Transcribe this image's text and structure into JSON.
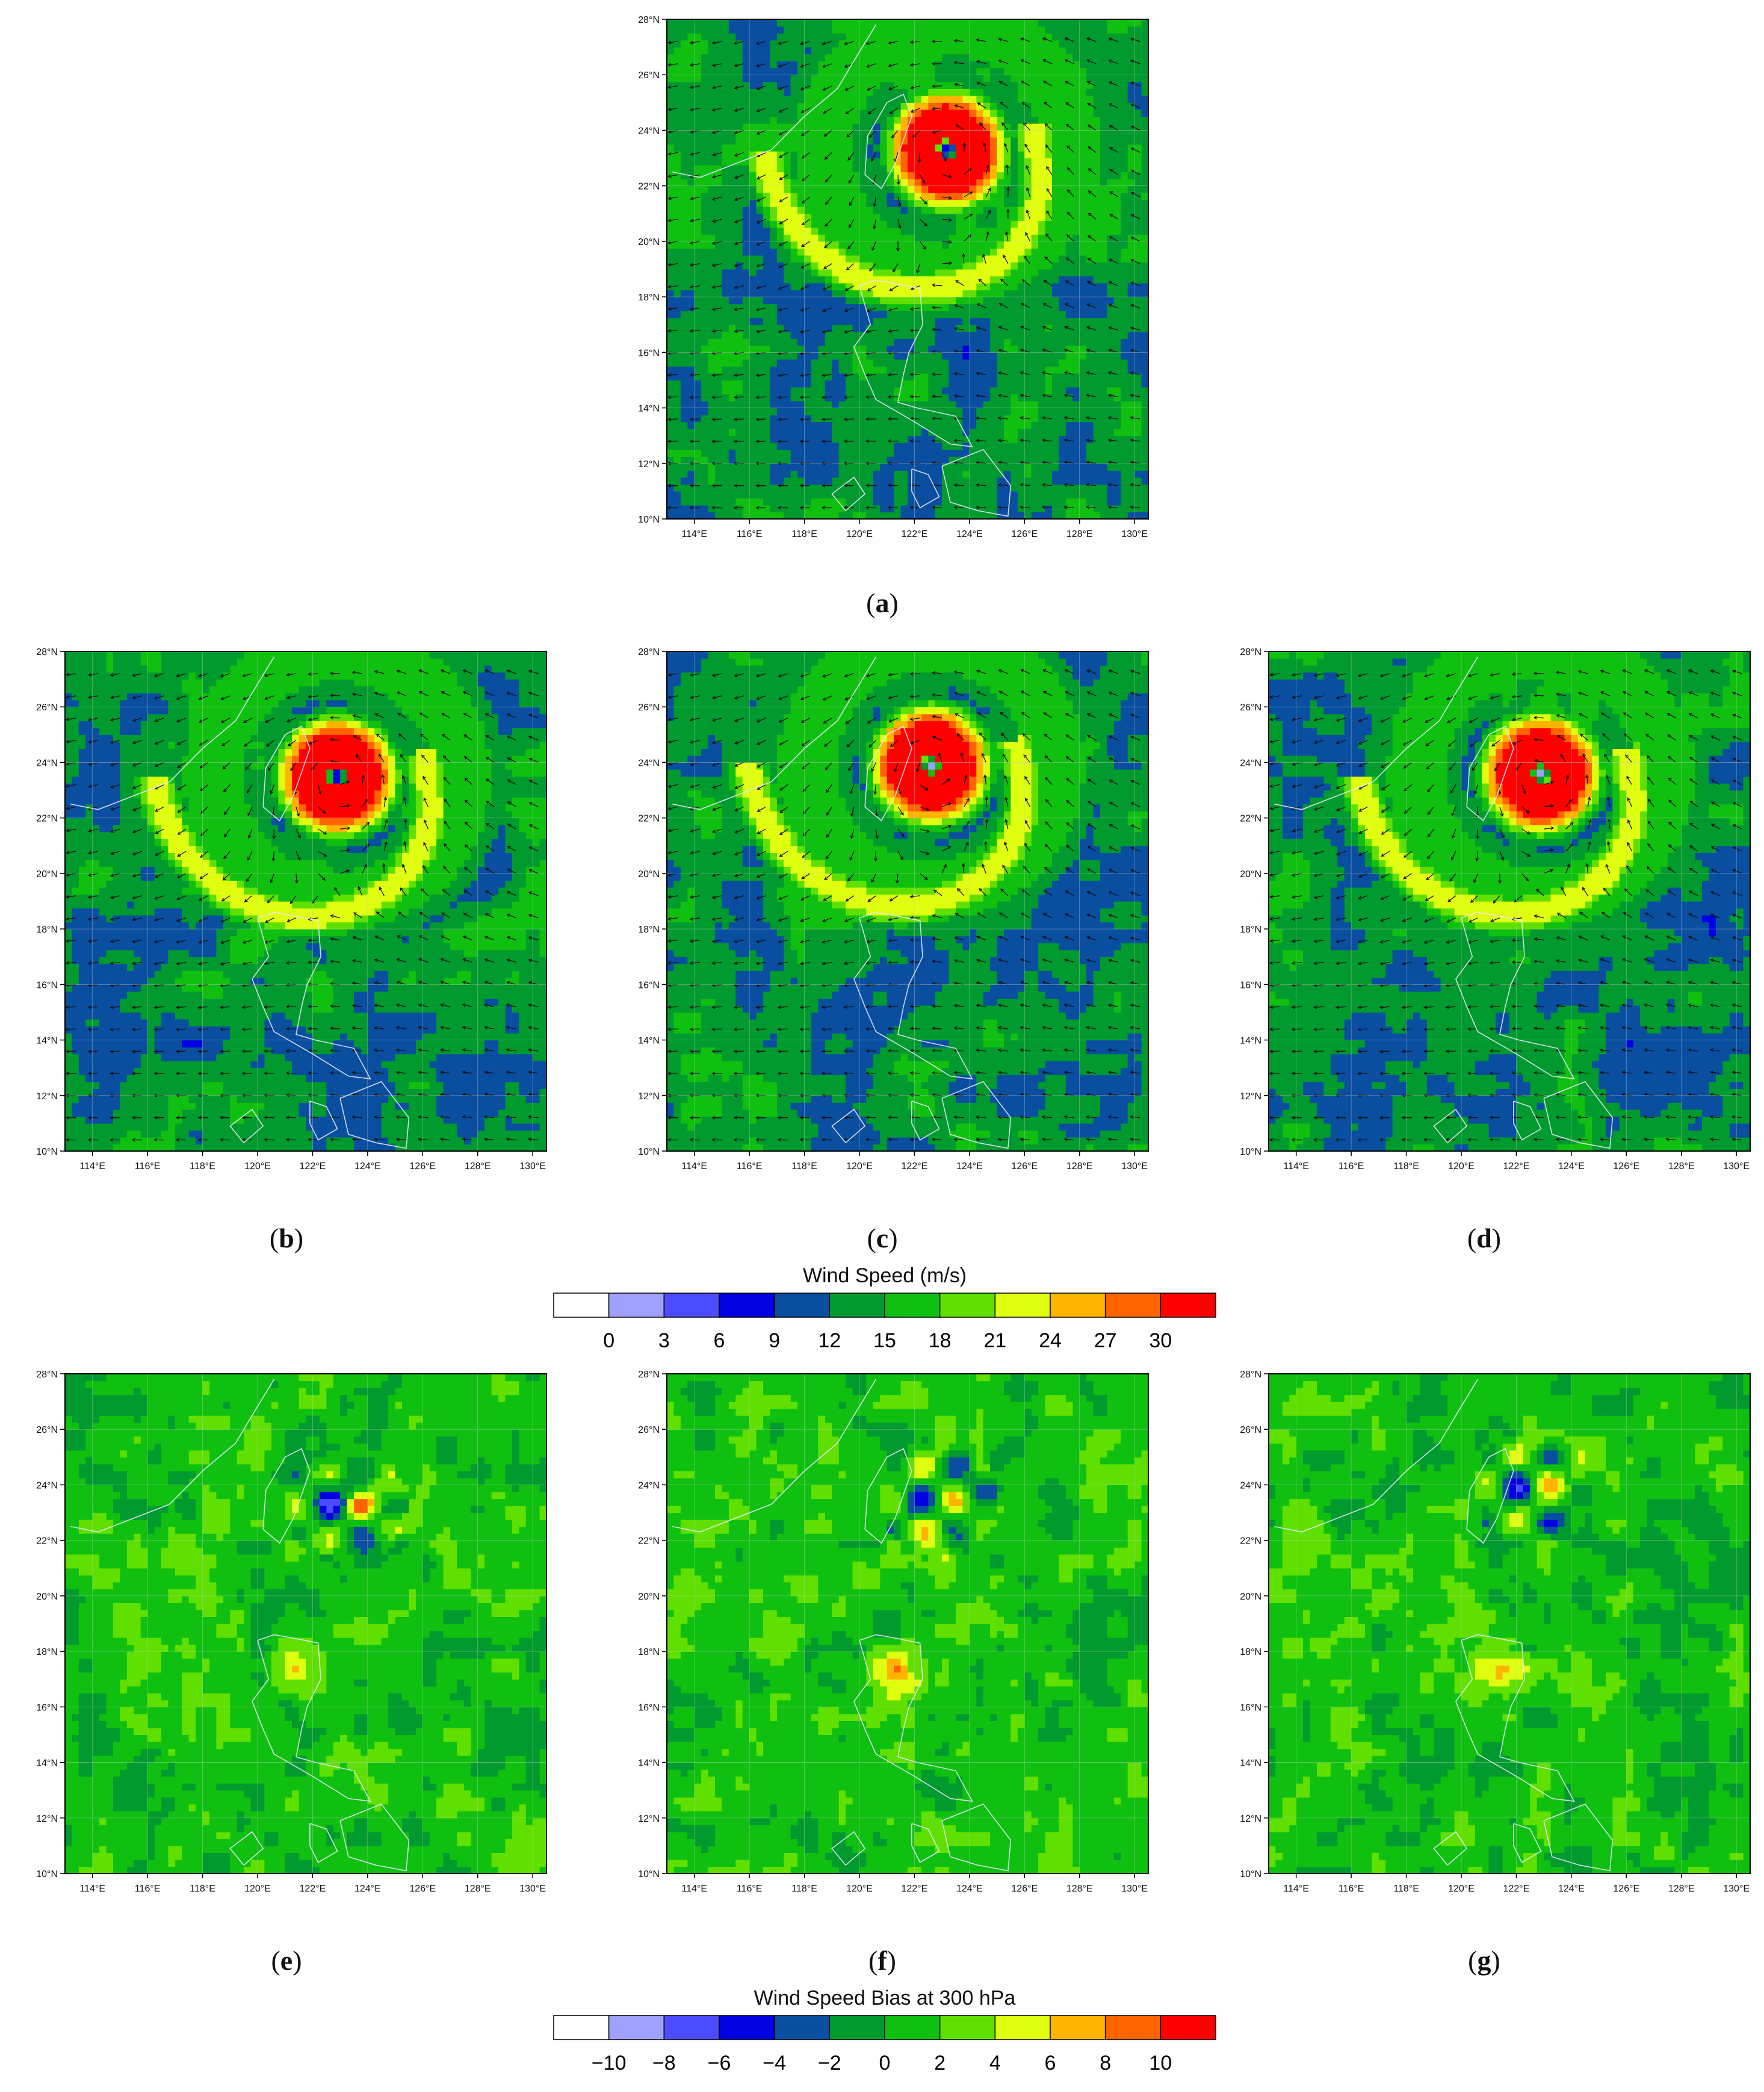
{
  "panels": [
    {
      "id": "a",
      "label": "a",
      "kind": "wind"
    },
    {
      "id": "b",
      "label": "b",
      "kind": "wind"
    },
    {
      "id": "c",
      "label": "c",
      "kind": "wind"
    },
    {
      "id": "d",
      "label": "d",
      "kind": "wind"
    },
    {
      "id": "e",
      "label": "e",
      "kind": "bias"
    },
    {
      "id": "f",
      "label": "f",
      "kind": "bias"
    },
    {
      "id": "g",
      "label": "g",
      "kind": "bias"
    }
  ],
  "lat_ticks": [
    "10°N",
    "12°N",
    "14°N",
    "16°N",
    "18°N",
    "20°N",
    "22°N",
    "24°N",
    "26°N",
    "28°N"
  ],
  "lon_ticks": [
    "114°E",
    "116°E",
    "118°E",
    "120°E",
    "122°E",
    "124°E",
    "126°E",
    "128°E",
    "130°E"
  ],
  "lat_range": [
    10,
    28
  ],
  "lon_range": [
    113,
    130.5
  ],
  "wind_colorbar": {
    "title": "Wind Speed  (m/s)",
    "labels": [
      "0",
      "3",
      "6",
      "9",
      "12",
      "15",
      "18",
      "21",
      "24",
      "27",
      "30"
    ],
    "colors": [
      "#ffffff",
      "#a0a0ff",
      "#4b4bff",
      "#0000e0",
      "#0a4ea0",
      "#009a2e",
      "#10c010",
      "#60e000",
      "#e0ff10",
      "#ffb400",
      "#ff6400",
      "#ff0000"
    ]
  },
  "bias_colorbar": {
    "title": "Wind Speed Bias at 300 hPa",
    "labels": [
      "−10",
      "−8",
      "−6",
      "−4",
      "−2",
      "0",
      "2",
      "4",
      "6",
      "8",
      "10"
    ],
    "colors": [
      "#ffffff",
      "#a0a0ff",
      "#4b4bff",
      "#0000e0",
      "#0a4ea0",
      "#009a2e",
      "#10c010",
      "#60e000",
      "#e0ff10",
      "#ffb400",
      "#ff6400",
      "#ff0000"
    ]
  },
  "typhoon_centers": [
    {
      "panel": "a",
      "lon": 123.2,
      "lat": 23.3
    },
    {
      "panel": "b",
      "lon": 122.9,
      "lat": 23.5
    },
    {
      "panel": "c",
      "lon": 122.6,
      "lat": 23.9
    },
    {
      "panel": "d",
      "lon": 122.9,
      "lat": 23.6
    }
  ]
}
